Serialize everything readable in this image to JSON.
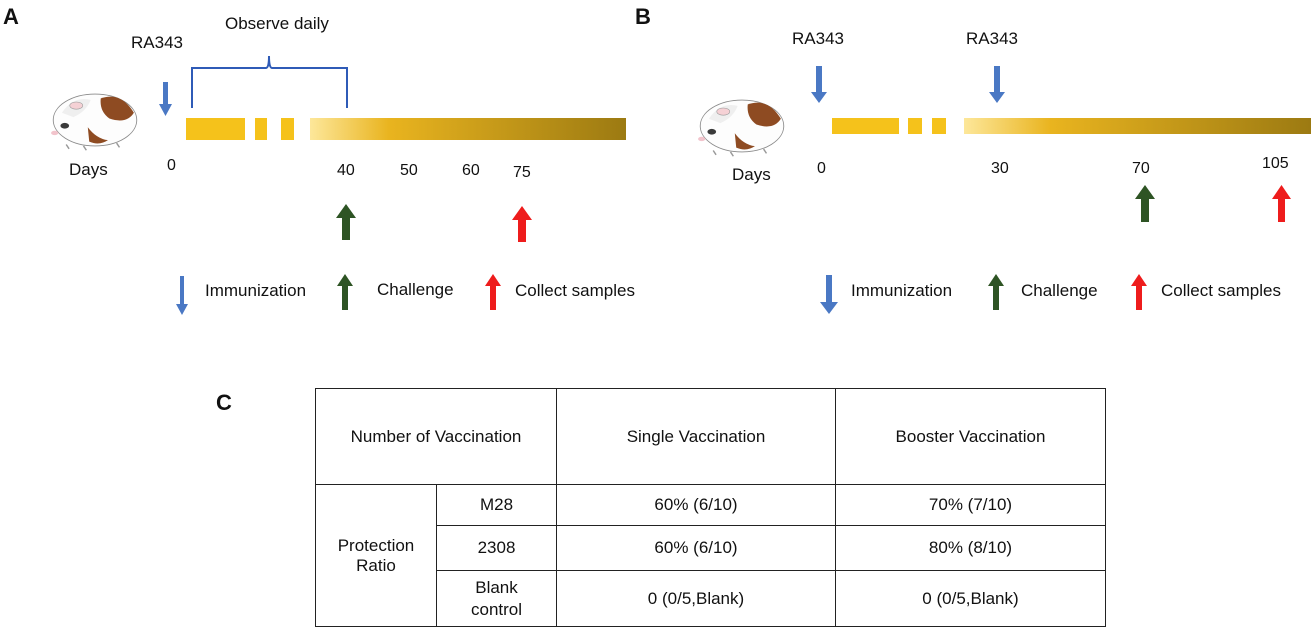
{
  "panel_a": {
    "letter": "A",
    "agent_label": "RA343",
    "observe_label": "Observe daily",
    "days_label": "Days",
    "ticks": [
      "0",
      "40",
      "50",
      "60",
      "75"
    ],
    "legend": {
      "immunization": "Immunization",
      "challenge": "Challenge",
      "collect": "Collect samples"
    }
  },
  "panel_b": {
    "letter": "B",
    "agent_label_1": "RA343",
    "agent_label_2": "RA343",
    "days_label": "Days",
    "ticks": [
      "0",
      "30",
      "70",
      "105"
    ],
    "legend": {
      "immunization": "Immunization",
      "challenge": "Challenge",
      "collect": "Collect samples"
    }
  },
  "panel_c": {
    "letter": "C",
    "header": {
      "col0": "Number of Vaccination",
      "col1": "Single Vaccination",
      "col2": "Booster Vaccination"
    },
    "row_group": "Protection Ratio",
    "rows": [
      {
        "name": "M28",
        "single": "60% (6/10)",
        "booster": "70% (7/10)"
      },
      {
        "name": "2308",
        "single": "60% (6/10)",
        "booster": "80% (8/10)"
      },
      {
        "name": "Blank control",
        "single": "0 (0/5,Blank)",
        "booster": "0 (0/5,Blank)"
      }
    ]
  },
  "colors": {
    "immunization_arrow": "#4a78c4",
    "challenge_arrow": "#2e5424",
    "collect_arrow": "#ee1c1c",
    "bar_start": "#f5c21b",
    "bar_end": "#9c7a12"
  }
}
